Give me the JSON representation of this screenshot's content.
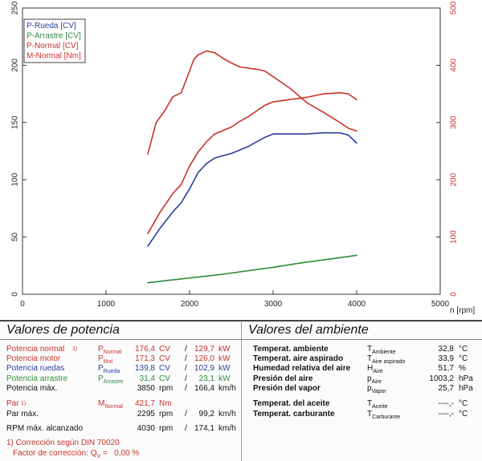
{
  "chart_data": {
    "type": "line",
    "x_axis": {
      "range": [
        0,
        5000
      ],
      "ticks": [
        "0",
        "1000",
        "2000",
        "3000",
        "4000",
        "5000"
      ],
      "label": "n [rpm]"
    },
    "y_left": {
      "range": [
        0,
        250
      ],
      "ticks": [
        "0",
        "50",
        "100",
        "150",
        "200",
        "250"
      ]
    },
    "y_right": {
      "range": [
        0,
        500
      ],
      "ticks": [
        "0",
        "100",
        "200",
        "300",
        "400",
        "500"
      ],
      "color": "#c8322a"
    },
    "grid": false,
    "legend_position": "top-left",
    "series": [
      {
        "name": "P-Rueda [CV]",
        "color": "#2a3f9a",
        "axis": "left",
        "x": [
          1500,
          1650,
          1800,
          1900,
          2000,
          2100,
          2200,
          2300,
          2400,
          2500,
          2600,
          2700,
          2800,
          2900,
          3000,
          3200,
          3400,
          3600,
          3800,
          3900,
          4000
        ],
        "y": [
          42,
          58,
          72,
          80,
          92,
          106,
          114,
          119,
          121,
          123,
          126,
          129,
          133,
          137,
          140,
          140,
          140,
          141,
          141,
          139,
          132
        ]
      },
      {
        "name": "P-Arrastre [CV]",
        "color": "#2f8a3a",
        "axis": "left",
        "x": [
          1500,
          1800,
          2100,
          2400,
          2700,
          3000,
          3300,
          3600,
          3900,
          4000
        ],
        "y": [
          10,
          12.5,
          15,
          17.5,
          20.5,
          23.5,
          27,
          30,
          33,
          34
        ]
      },
      {
        "name": "P-Normal [CV]",
        "color": "#c8322a",
        "axis": "left",
        "x": [
          1500,
          1650,
          1800,
          1900,
          2000,
          2100,
          2200,
          2300,
          2400,
          2500,
          2600,
          2700,
          2800,
          2900,
          3000,
          3200,
          3400,
          3600,
          3800,
          3900,
          4000
        ],
        "y": [
          53,
          72,
          88,
          96,
          112,
          124,
          133,
          140,
          143,
          146,
          151,
          155,
          160,
          165,
          168,
          170,
          172,
          175,
          176,
          175,
          170
        ]
      },
      {
        "name": "M-Normal [Nm]",
        "color": "#c8322a",
        "axis": "right",
        "x": [
          1500,
          1600,
          1700,
          1800,
          1900,
          2000,
          2050,
          2100,
          2200,
          2300,
          2400,
          2500,
          2600,
          2800,
          2900,
          3000,
          3200,
          3400,
          3600,
          3800,
          3900,
          4000
        ],
        "y": [
          245,
          300,
          320,
          345,
          352,
          390,
          410,
          418,
          425,
          422,
          412,
          404,
          397,
          393,
          390,
          380,
          360,
          335,
          318,
          300,
          290,
          285
        ]
      }
    ]
  },
  "power": {
    "title": "Valores de potencia",
    "rows": [
      {
        "label": "Potencia normal",
        "footnote": "1)",
        "symbol": "P",
        "symbol_sub": "Normal",
        "value": "176,4",
        "unit": "CV",
        "sep": "/",
        "value2": "129,7",
        "unit2": "kW",
        "tone": "red"
      },
      {
        "label": "Potencia motor",
        "footnote": "",
        "symbol": "P",
        "symbol_sub": "Mot",
        "value": "171,3",
        "unit": "CV",
        "sep": "/",
        "value2": "126,0",
        "unit2": "kW",
        "tone": "red"
      },
      {
        "label": "Potencia ruedas",
        "footnote": "",
        "symbol": "P",
        "symbol_sub": "Rueda",
        "value": "139,8",
        "unit": "CV",
        "sep": "/",
        "value2": "102,9",
        "unit2": "kW",
        "tone": "blue"
      },
      {
        "label": "Potencia arrastre",
        "footnote": "",
        "symbol": "P",
        "symbol_sub": "Arrastre",
        "value": "31,4",
        "unit": "CV",
        "sep": "/",
        "value2": "23,1",
        "unit2": "kW",
        "tone": "green"
      },
      {
        "label": "Potencia máx.",
        "footnote": "",
        "symbol": "",
        "symbol_sub": "",
        "value": "3850",
        "unit": "rpm",
        "sep": "/",
        "value2": "166,4",
        "unit2": "km/h",
        "tone": "black"
      }
    ],
    "par": {
      "label": "Par",
      "footnote": "1)",
      "symbol": "M",
      "symbol_sub": "Normal",
      "value": "421,7",
      "unit": "Nm"
    },
    "par_max": {
      "label": "Par máx.",
      "value": "2295",
      "unit": "rpm",
      "sep": "/",
      "value2": "99,2",
      "unit2": "km/h"
    },
    "rpm_max": {
      "label": "RPM máx. alcanzado",
      "value": "4030",
      "unit": "rpm",
      "sep": "/",
      "value2": "174,1",
      "unit2": "km/h"
    },
    "footnote1": "1) Corrección según DIN 70020",
    "footnote2": "Factor de corrección: Q",
    "footnote2_sub": "V",
    "footnote2_value": "=   0,00 %"
  },
  "environment": {
    "title": "Valores del ambiente",
    "rows": [
      {
        "label": "Temperat. ambiente",
        "symbol": "T",
        "symbol_sub": "Ambiente",
        "value": "32,8",
        "unit": "°C"
      },
      {
        "label": "Temperat. aire aspirado",
        "symbol": "T",
        "symbol_sub": "Aire aspirado",
        "value": "33,9",
        "unit": "°C"
      },
      {
        "label": "Humedad relativa del aire",
        "symbol": "H",
        "symbol_sub": "Aire",
        "value": "51,7",
        "unit": "%"
      },
      {
        "label": "Presión del aire",
        "symbol": "p",
        "symbol_sub": "Aire",
        "value": "1003,2",
        "unit": "hPa"
      },
      {
        "label": "Presión del vapor",
        "symbol": "p",
        "symbol_sub": "Vapor",
        "value": "25,7",
        "unit": "hPa"
      },
      {
        "label": "Temperat. del aceite",
        "symbol": "T",
        "symbol_sub": "Aceite",
        "value": "----,-",
        "unit": "°C"
      },
      {
        "label": "Temperat. carburante",
        "symbol": "T",
        "symbol_sub": "Carburante",
        "value": "----,-",
        "unit": "°C"
      }
    ]
  },
  "colors": {
    "red": "#c8322a",
    "blue": "#2a3f9a",
    "green": "#2f8a3a",
    "black": "#111111"
  }
}
